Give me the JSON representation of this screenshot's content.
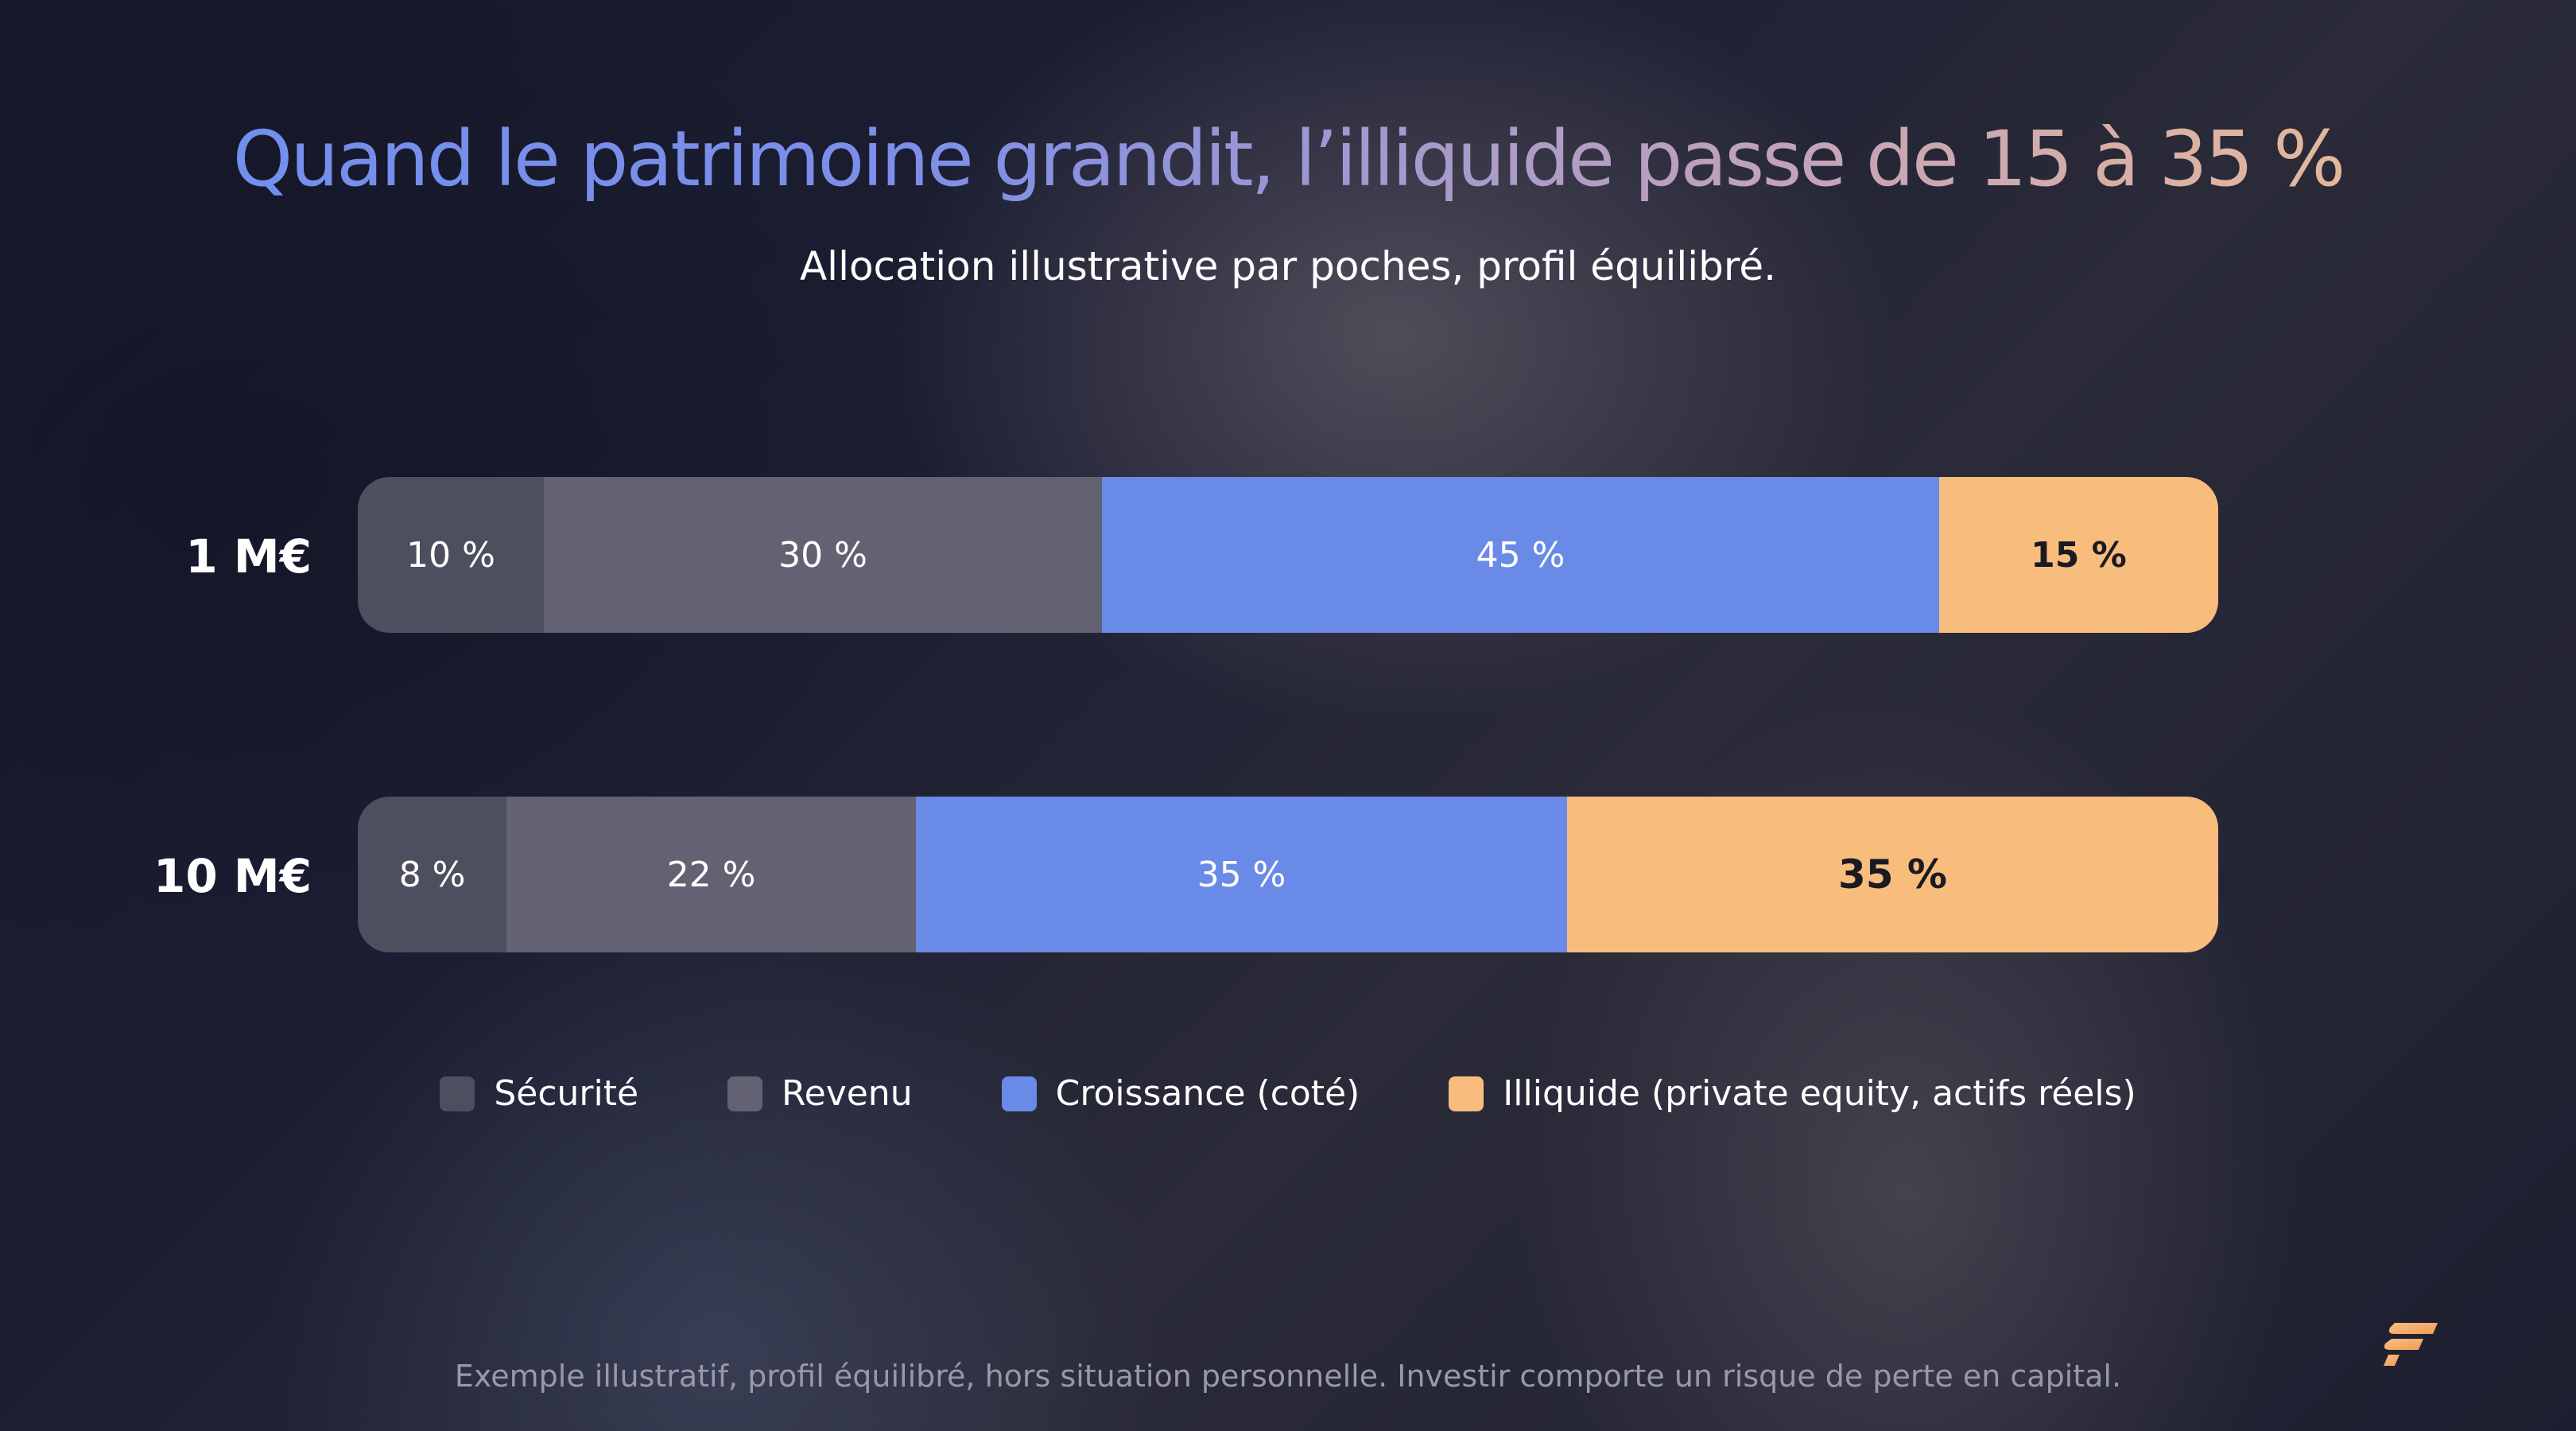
{
  "title": "Quand le patrimoine grandit, l’illiquide passe de 15 à 35 %",
  "subtitle": "Allocation illustrative par poches, profil équilibré.",
  "footer": "Exemple illustratif, profil équilibré, hors situation personnelle. Investir comporte un risque de perte en capital.",
  "logo_icon": "brand-logo-icon",
  "colors": {
    "securite": "#4d4e5e",
    "revenu": "#626272",
    "croissance": "#6a8ae8",
    "illiquide": "#f8bd7d"
  },
  "chart_data": {
    "type": "bar",
    "orientation": "horizontal",
    "stacked": true,
    "percent": true,
    "categories": [
      "1 M€",
      "10 M€"
    ],
    "series": [
      {
        "name": "Sécurité",
        "values": [
          10,
          8
        ],
        "labels": [
          "10 %",
          "8 %"
        ]
      },
      {
        "name": "Revenu",
        "values": [
          30,
          22
        ],
        "labels": [
          "30 %",
          "22 %"
        ]
      },
      {
        "name": "Croissance (coté)",
        "values": [
          45,
          35
        ],
        "labels": [
          "45 %",
          "35 %"
        ]
      },
      {
        "name": "Illiquide (private equity, actifs réels)",
        "values": [
          15,
          35
        ],
        "labels": [
          "15 %",
          "35 %"
        ]
      }
    ],
    "legend": {
      "position": "bottom",
      "items": [
        "Sécurité",
        "Revenu",
        "Croissance (coté)",
        "Illiquide (private equity, actifs réels)"
      ]
    },
    "grid": false,
    "xlim": [
      0,
      100
    ]
  }
}
